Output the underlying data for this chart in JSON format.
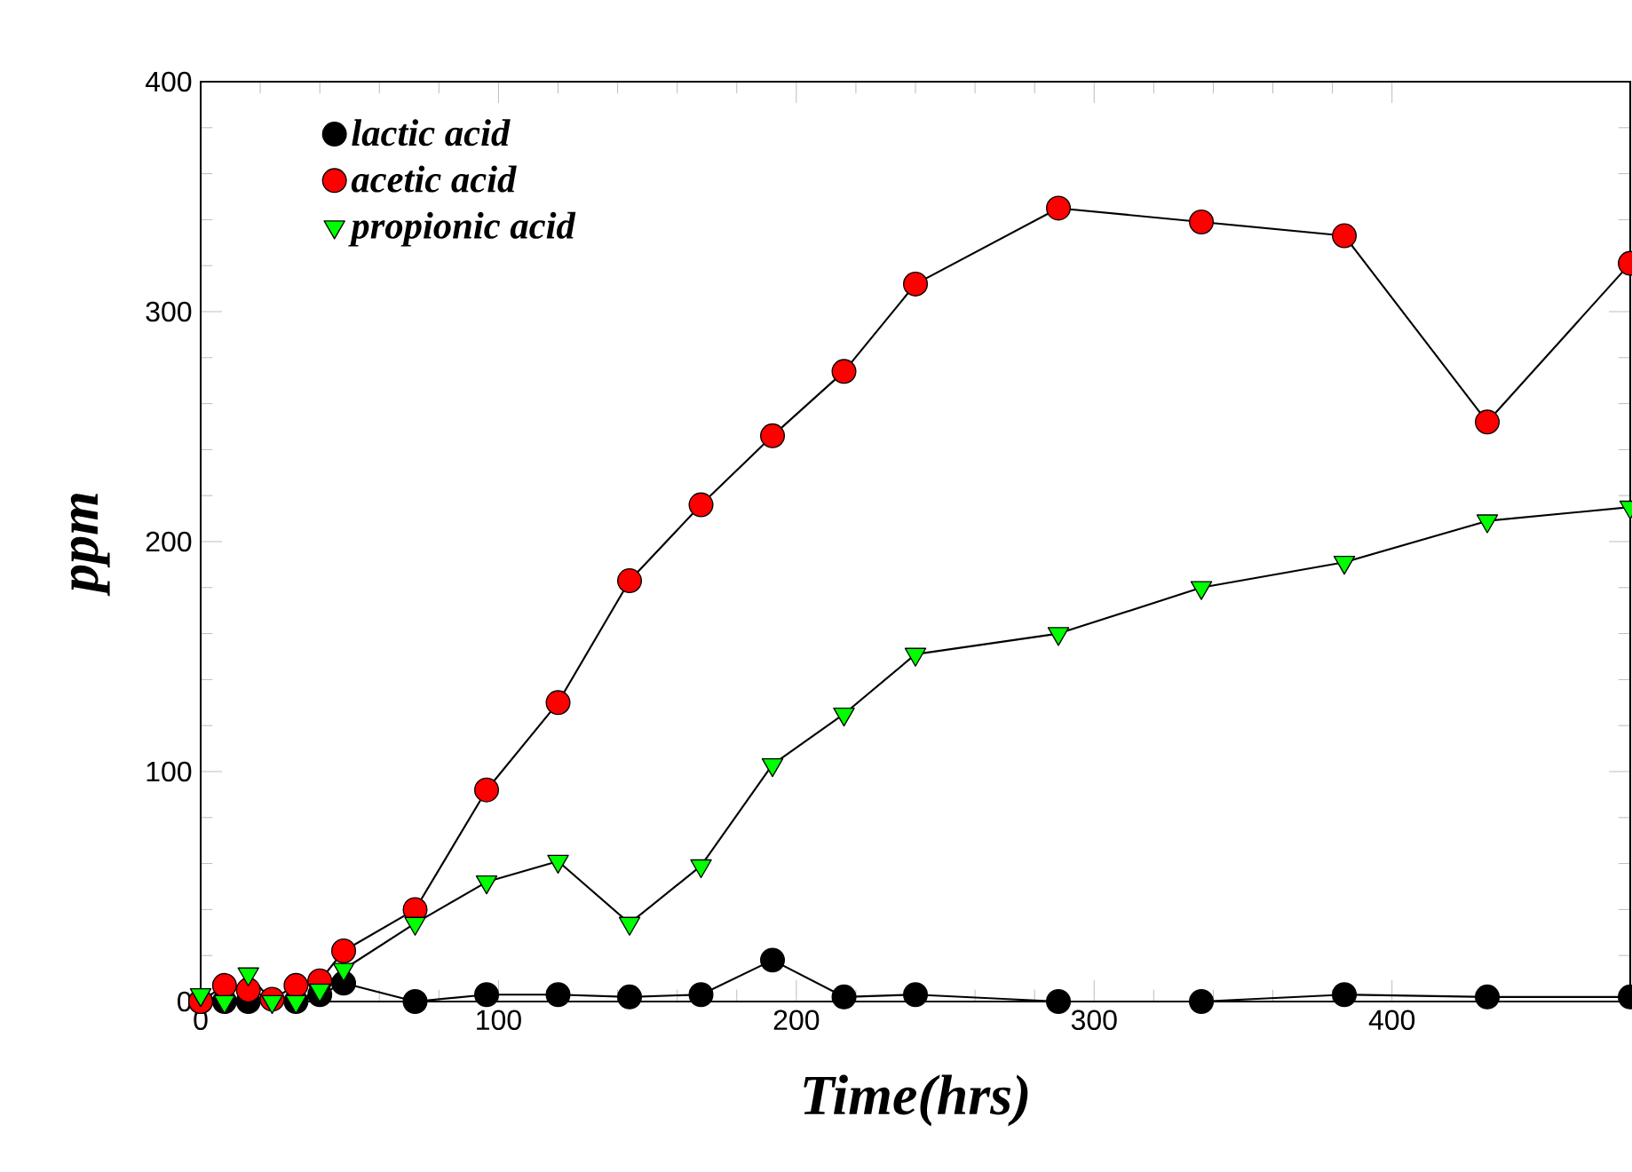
{
  "chart_data": {
    "type": "line",
    "xlabel": "Time(hrs)",
    "ylabel": "ppm",
    "x": [
      0,
      8,
      16,
      24,
      32,
      40,
      48,
      72,
      96,
      120,
      144,
      168,
      192,
      216,
      240,
      288,
      336,
      384,
      432,
      480
    ],
    "series": [
      {
        "name": "lactic acid",
        "color": "#000000",
        "marker": "circle",
        "values": [
          0,
          0,
          0,
          null,
          0,
          3,
          8,
          0,
          3,
          3,
          2,
          3,
          18,
          2,
          3,
          0,
          0,
          3,
          2,
          2
        ]
      },
      {
        "name": "acetic acid",
        "color": "#ff0000",
        "marker": "circle",
        "values": [
          0,
          7,
          5,
          1,
          7,
          9,
          22,
          40,
          92,
          130,
          183,
          216,
          246,
          274,
          312,
          345,
          339,
          333,
          252,
          321
        ]
      },
      {
        "name": "propionic acid",
        "color": "#00ff00",
        "marker": "triangle",
        "values": [
          3,
          0,
          12,
          0,
          0,
          5,
          14,
          34,
          52,
          61,
          34,
          59,
          103,
          125,
          151,
          160,
          180,
          191,
          209,
          215
        ]
      }
    ],
    "xlim": [
      0,
      480
    ],
    "ylim": [
      0,
      400
    ],
    "xticks": [
      0,
      100,
      200,
      300,
      400
    ],
    "yticks": [
      0,
      100,
      200,
      300,
      400
    ],
    "grid": false,
    "legend": "top left",
    "line_style": "solid"
  }
}
